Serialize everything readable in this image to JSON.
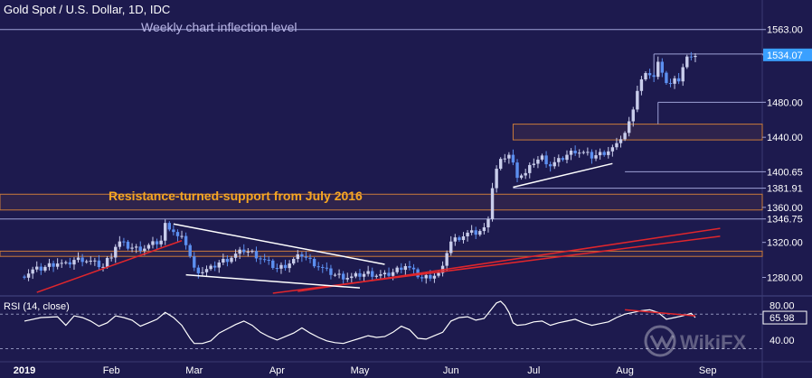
{
  "header": {
    "title": "Gold Spot / U.S. Dollar, 1D, IDC"
  },
  "annotations": {
    "weekly": "Weekly chart inflection level",
    "resistance": "Resistance-turned-support from July 2016"
  },
  "colors": {
    "background": "#1d1a4e",
    "panel_border": "#3a3b73",
    "candle_up": "#c9cdeb",
    "candle_down": "#5c8ff0",
    "trendline_red": "#e0262c",
    "trendline_white": "#ffffff",
    "zone_orange": "#c97a3a",
    "annotation_orange": "#f5a623",
    "annotation_lavender": "#b9b6e6",
    "current_price_label": "#3aa0ff",
    "rsi_line": "#ffffff",
    "rsi_level": "#8d8fb8"
  },
  "chart_data": [
    {
      "type": "candlestick",
      "title": "Gold Spot / U.S. Dollar, 1D, IDC",
      "y_axis": {
        "ticks": [
          "1280.00",
          "1320.00",
          "1360.00",
          "1400.65",
          "1440.00",
          "1480.00",
          "1534.07",
          "1563.00"
        ],
        "range": [
          1262,
          1572
        ],
        "price_labels": [
          {
            "label": "1563.00",
            "value": 1563.0
          },
          {
            "label": "1535.03",
            "value": 1535.03
          },
          {
            "label": "1534.07",
            "value": 1534.07,
            "current": true
          },
          {
            "label": "1480.00",
            "value": 1480.0
          },
          {
            "label": "1440.00",
            "value": 1440.0
          },
          {
            "label": "1400.65",
            "value": 1400.65
          },
          {
            "label": "1381.91",
            "value": 1381.91
          },
          {
            "label": "1360.00",
            "value": 1360.0
          },
          {
            "label": "1346.75",
            "value": 1346.75
          },
          {
            "label": "1320.00",
            "value": 1320.0
          },
          {
            "label": "1280.00",
            "value": 1280.0
          }
        ]
      },
      "x_axis": {
        "labels": [
          "2019",
          "Feb",
          "Mar",
          "Apr",
          "May",
          "Jun",
          "Jul",
          "Aug",
          "Sep"
        ],
        "label_days": [
          0,
          21,
          41,
          61,
          81,
          103,
          123,
          145,
          165
        ]
      },
      "levels": [
        {
          "value": 1563.0,
          "label": "Weekly chart inflection level"
        },
        {
          "value": 1535.03
        },
        {
          "value": 1480.0
        },
        {
          "value": 1400.65
        },
        {
          "value": 1381.91
        },
        {
          "value": 1346.75
        }
      ],
      "zones": [
        {
          "from": 1357,
          "to": 1375,
          "label": "Resistance-turned-support from July 2016"
        },
        {
          "from": 1304,
          "to": 1310
        },
        {
          "from": 1437,
          "to": 1455
        }
      ],
      "close_points": [
        [
          0,
          1283
        ],
        [
          2,
          1288
        ],
        [
          4,
          1290
        ],
        [
          6,
          1294
        ],
        [
          8,
          1297
        ],
        [
          10,
          1294
        ],
        [
          12,
          1300
        ],
        [
          14,
          1301
        ],
        [
          16,
          1298
        ],
        [
          18,
          1294
        ],
        [
          19,
          1292
        ],
        [
          20,
          1300
        ],
        [
          21,
          1306
        ],
        [
          22,
          1316
        ],
        [
          23,
          1320
        ],
        [
          25,
          1315
        ],
        [
          27,
          1313
        ],
        [
          29,
          1314
        ],
        [
          31,
          1318
        ],
        [
          33,
          1322
        ],
        [
          34,
          1340
        ],
        [
          35,
          1338
        ],
        [
          36,
          1333
        ],
        [
          37,
          1326
        ],
        [
          38,
          1324
        ],
        [
          39,
          1319
        ],
        [
          40,
          1304
        ],
        [
          41,
          1289
        ],
        [
          43,
          1287
        ],
        [
          45,
          1290
        ],
        [
          47,
          1297
        ],
        [
          49,
          1301
        ],
        [
          51,
          1306
        ],
        [
          53,
          1311
        ],
        [
          55,
          1308
        ],
        [
          57,
          1302
        ],
        [
          59,
          1296
        ],
        [
          61,
          1290
        ],
        [
          63,
          1294
        ],
        [
          65,
          1300
        ],
        [
          67,
          1306
        ],
        [
          69,
          1299
        ],
        [
          71,
          1293
        ],
        [
          73,
          1287
        ],
        [
          75,
          1283
        ],
        [
          77,
          1281
        ],
        [
          79,
          1280
        ],
        [
          81,
          1283
        ],
        [
          83,
          1285
        ],
        [
          85,
          1283
        ],
        [
          87,
          1282
        ],
        [
          89,
          1286
        ],
        [
          91,
          1292
        ],
        [
          92,
          1294
        ],
        [
          94,
          1286
        ],
        [
          96,
          1279
        ],
        [
          98,
          1282
        ],
        [
          100,
          1284
        ],
        [
          101,
          1290
        ],
        [
          102,
          1310
        ],
        [
          103,
          1321
        ],
        [
          105,
          1326
        ],
        [
          107,
          1330
        ],
        [
          109,
          1331
        ],
        [
          111,
          1335
        ],
        [
          112,
          1350
        ],
        [
          113,
          1383
        ],
        [
          114,
          1403
        ],
        [
          115,
          1412
        ],
        [
          116,
          1418
        ],
        [
          117,
          1420
        ],
        [
          118,
          1409
        ],
        [
          119,
          1397
        ],
        [
          121,
          1398
        ],
        [
          123,
          1412
        ],
        [
          125,
          1417
        ],
        [
          127,
          1408
        ],
        [
          129,
          1413
        ],
        [
          131,
          1420
        ],
        [
          133,
          1425
        ],
        [
          135,
          1422
        ],
        [
          137,
          1418
        ],
        [
          139,
          1421
        ],
        [
          141,
          1425
        ],
        [
          143,
          1430
        ],
        [
          144,
          1440
        ],
        [
          145,
          1445
        ],
        [
          146,
          1456
        ],
        [
          147,
          1475
        ],
        [
          148,
          1494
        ],
        [
          149,
          1505
        ],
        [
          150,
          1510
        ],
        [
          151,
          1513
        ],
        [
          152,
          1509
        ],
        [
          153,
          1524
        ],
        [
          154,
          1517
        ],
        [
          155,
          1503
        ],
        [
          156,
          1500
        ],
        [
          157,
          1504
        ],
        [
          158,
          1506
        ],
        [
          159,
          1520
        ],
        [
          160,
          1530
        ],
        [
          161,
          1535
        ],
        [
          162,
          1534
        ]
      ],
      "trendlines": [
        {
          "color": "red",
          "from": [
            3,
            1263
          ],
          "to": [
            38,
            1322
          ]
        },
        {
          "color": "red",
          "from": [
            60,
            1262
          ],
          "to": [
            168,
            1327
          ]
        },
        {
          "color": "red",
          "from": [
            66,
            1264
          ],
          "to": [
            168,
            1336
          ]
        },
        {
          "color": "white",
          "from": [
            36,
            1341
          ],
          "to": [
            87,
            1295
          ]
        },
        {
          "color": "white",
          "from": [
            39,
            1283
          ],
          "to": [
            81,
            1268
          ]
        },
        {
          "color": "white",
          "from": [
            118,
            1383
          ],
          "to": [
            142,
            1410
          ]
        }
      ]
    },
    {
      "type": "line",
      "title": "RSI (14, close)",
      "y_ticks": [
        "80.00",
        "40.00"
      ],
      "levels": [
        70,
        30
      ],
      "current_value": "65.98",
      "y_range": [
        20,
        88
      ],
      "divergence_line": {
        "from": [
          145,
          75
        ],
        "to": [
          162,
          68
        ]
      },
      "points": [
        [
          0,
          62
        ],
        [
          4,
          66
        ],
        [
          8,
          67
        ],
        [
          10,
          57
        ],
        [
          12,
          68
        ],
        [
          14,
          66
        ],
        [
          16,
          62
        ],
        [
          18,
          56
        ],
        [
          20,
          60
        ],
        [
          22,
          68
        ],
        [
          24,
          66
        ],
        [
          26,
          63
        ],
        [
          28,
          56
        ],
        [
          30,
          60
        ],
        [
          32,
          64
        ],
        [
          34,
          72
        ],
        [
          36,
          66
        ],
        [
          38,
          57
        ],
        [
          40,
          42
        ],
        [
          41,
          36
        ],
        [
          43,
          36
        ],
        [
          45,
          39
        ],
        [
          47,
          48
        ],
        [
          49,
          53
        ],
        [
          51,
          58
        ],
        [
          53,
          62
        ],
        [
          55,
          57
        ],
        [
          57,
          49
        ],
        [
          59,
          44
        ],
        [
          61,
          40
        ],
        [
          63,
          44
        ],
        [
          65,
          48
        ],
        [
          67,
          54
        ],
        [
          69,
          48
        ],
        [
          71,
          43
        ],
        [
          73,
          39
        ],
        [
          75,
          37
        ],
        [
          77,
          36
        ],
        [
          79,
          39
        ],
        [
          81,
          42
        ],
        [
          83,
          45
        ],
        [
          85,
          43
        ],
        [
          87,
          44
        ],
        [
          89,
          49
        ],
        [
          91,
          56
        ],
        [
          93,
          52
        ],
        [
          95,
          42
        ],
        [
          97,
          41
        ],
        [
          99,
          45
        ],
        [
          101,
          49
        ],
        [
          103,
          62
        ],
        [
          105,
          66
        ],
        [
          107,
          67
        ],
        [
          109,
          63
        ],
        [
          111,
          65
        ],
        [
          113,
          77
        ],
        [
          114,
          83
        ],
        [
          115,
          85
        ],
        [
          116,
          80
        ],
        [
          117,
          72
        ],
        [
          118,
          60
        ],
        [
          119,
          57
        ],
        [
          121,
          58
        ],
        [
          123,
          61
        ],
        [
          125,
          62
        ],
        [
          127,
          57
        ],
        [
          129,
          60
        ],
        [
          131,
          62
        ],
        [
          133,
          64
        ],
        [
          135,
          60
        ],
        [
          137,
          57
        ],
        [
          139,
          59
        ],
        [
          141,
          61
        ],
        [
          143,
          66
        ],
        [
          145,
          70
        ],
        [
          147,
          72
        ],
        [
          149,
          74
        ],
        [
          151,
          75
        ],
        [
          153,
          72
        ],
        [
          155,
          64
        ],
        [
          157,
          66
        ],
        [
          159,
          68
        ],
        [
          161,
          71
        ],
        [
          162,
          66
        ]
      ]
    }
  ]
}
